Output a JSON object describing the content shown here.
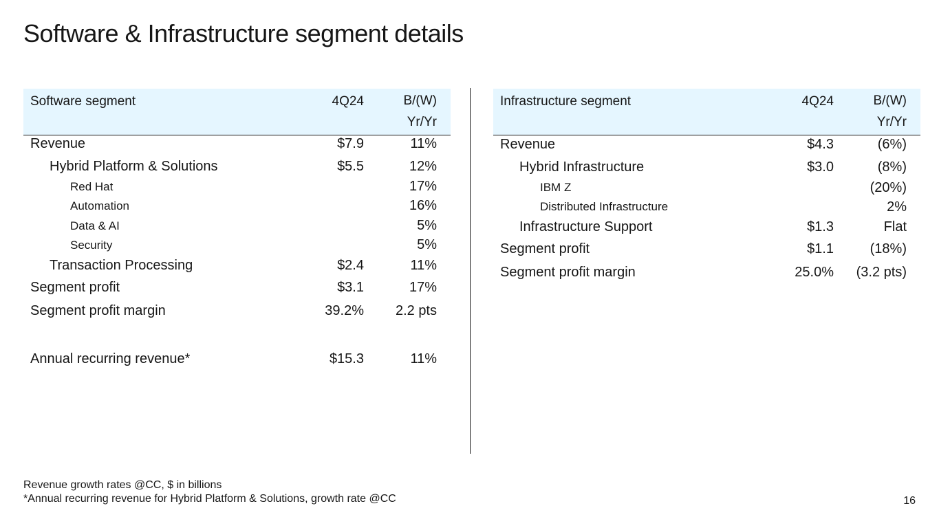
{
  "title": "Software & Infrastructure segment details",
  "software": {
    "header": {
      "label": "Software segment",
      "period": "4Q24",
      "change_line1": "B/(W)",
      "change_line2": "Yr/Yr"
    },
    "rows": [
      {
        "label": "Revenue",
        "value": "$7.9",
        "change": "11%"
      },
      {
        "label": "Hybrid Platform & Solutions",
        "value": "$5.5",
        "change": "12%"
      },
      {
        "label": "Red Hat",
        "value": "",
        "change": "17%"
      },
      {
        "label": "Automation",
        "value": "",
        "change": "16%"
      },
      {
        "label": "Data & AI",
        "value": "",
        "change": "5%"
      },
      {
        "label": "Security",
        "value": "",
        "change": "5%"
      },
      {
        "label": "Transaction Processing",
        "value": "$2.4",
        "change": "11%"
      },
      {
        "label": "Segment profit",
        "value": "$3.1",
        "change": "17%"
      },
      {
        "label": "Segment profit margin",
        "value": "39.2%",
        "change": "2.2 pts"
      },
      {
        "label": "Annual recurring revenue*",
        "value": "$15.3",
        "change": "11%"
      }
    ]
  },
  "infrastructure": {
    "header": {
      "label": "Infrastructure segment",
      "period": "4Q24",
      "change_line1": "B/(W)",
      "change_line2": "Yr/Yr"
    },
    "rows": [
      {
        "label": "Revenue",
        "value": "$4.3",
        "change": "(6%)"
      },
      {
        "label": "Hybrid Infrastructure",
        "value": "$3.0",
        "change": "(8%)"
      },
      {
        "label": "IBM Z",
        "value": "",
        "change": "(20%)"
      },
      {
        "label": "Distributed Infrastructure",
        "value": "",
        "change": "2%"
      },
      {
        "label": "Infrastructure Support",
        "value": "$1.3",
        "change": "Flat"
      },
      {
        "label": "Segment profit",
        "value": "$1.1",
        "change": "(18%)"
      },
      {
        "label": "Segment profit margin",
        "value": "25.0%",
        "change": "(3.2 pts)"
      }
    ]
  },
  "footnotes": {
    "line1": "Revenue growth rates @CC, $ in billions",
    "line2": "*Annual recurring revenue for Hybrid Platform & Solutions, growth rate @CC"
  },
  "page_number": "16"
}
